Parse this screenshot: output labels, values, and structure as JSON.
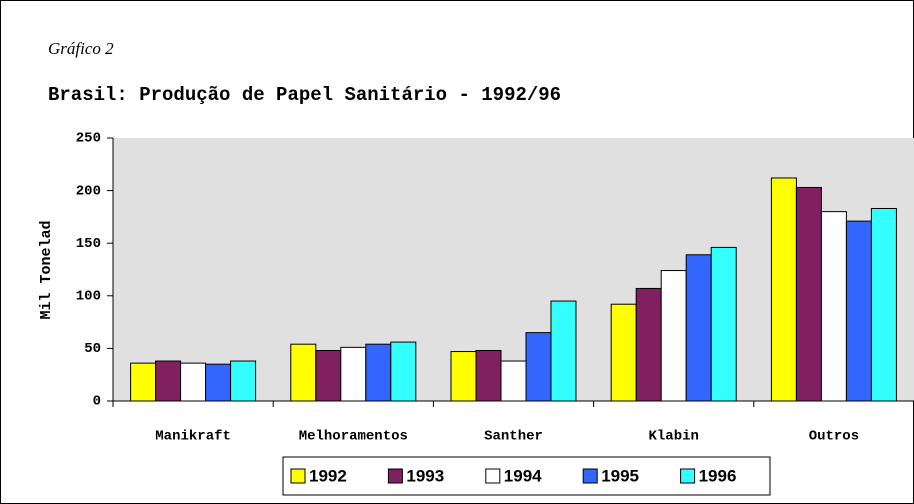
{
  "chart_data": {
    "type": "bar",
    "caption": "Gráfico 2",
    "title": "Brasil: Produção de Papel Sanitário - 1992/96",
    "ylabel": "Mil Tonelad",
    "categories": [
      "Manikraft",
      "Melhoramentos",
      "Santher",
      "Klabin",
      "Outros"
    ],
    "series": [
      {
        "name": "1992",
        "color": "#ffff00",
        "values": [
          36,
          54,
          47,
          92,
          212
        ]
      },
      {
        "name": "1993",
        "color": "#802060",
        "values": [
          38,
          48,
          48,
          107,
          203
        ]
      },
      {
        "name": "1994",
        "color": "#ffffff",
        "values": [
          36,
          51,
          38,
          124,
          180
        ]
      },
      {
        "name": "1995",
        "color": "#3366ff",
        "values": [
          35,
          54,
          65,
          139,
          171
        ]
      },
      {
        "name": "1996",
        "color": "#33ffff",
        "values": [
          38,
          56,
          95,
          146,
          183
        ]
      }
    ],
    "ylim": [
      0,
      250
    ],
    "yticks": [
      0,
      50,
      100,
      150,
      200,
      250
    ],
    "legend": "bottom"
  }
}
